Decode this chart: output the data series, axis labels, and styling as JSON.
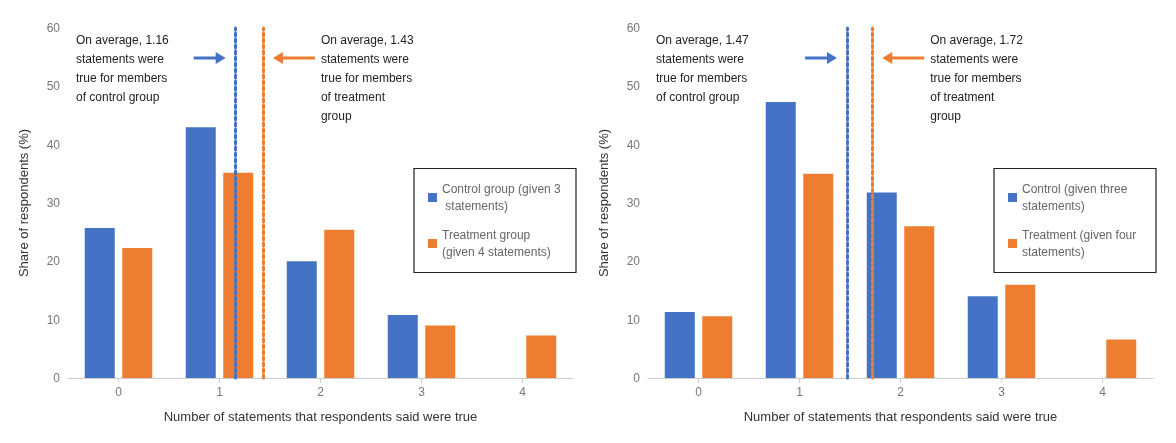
{
  "chart_data": [
    {
      "type": "bar",
      "xlabel": "Number of statements that respondents said were true",
      "ylabel": "Share of respondents (%)",
      "x": [
        0,
        1,
        2,
        3,
        4
      ],
      "xlim": [
        -0.5,
        4.5
      ],
      "xticks": [
        0,
        1,
        2,
        3,
        4
      ],
      "ylim": [
        0,
        60
      ],
      "yticks": [
        0,
        10,
        20,
        30,
        40,
        50,
        60
      ],
      "grid": false,
      "legend": "right",
      "series": [
        {
          "name": "Control group (given 3 statements)",
          "color": "#4472c4",
          "values": [
            25.7,
            43,
            20,
            10.8,
            null
          ]
        },
        {
          "name": "Treatment group (given 4 statements)",
          "color": "#ed7d31",
          "values": [
            22.3,
            35.2,
            25.4,
            9,
            7.3
          ]
        }
      ],
      "ref_lines": [
        {
          "axis": "x",
          "value": 1.16,
          "color": "#4472c4",
          "line_style": "dotted"
        },
        {
          "axis": "x",
          "value": 1.43,
          "color": "#ed7d31",
          "line_style": "dotted"
        }
      ],
      "annotations": [
        "On average, 1.16 statements were true for members of control group",
        "On average, 1.43 statements were true for members of treatment group"
      ]
    },
    {
      "type": "bar",
      "xlabel": "Number of statements that respondents said were true",
      "ylabel": "Share of respondents (%)",
      "x": [
        0,
        1,
        2,
        3,
        4
      ],
      "xlim": [
        -0.5,
        4.5
      ],
      "xticks": [
        0,
        1,
        2,
        3,
        4
      ],
      "ylim": [
        0,
        60
      ],
      "yticks": [
        0,
        10,
        20,
        30,
        40,
        50,
        60
      ],
      "grid": false,
      "legend": "right",
      "series": [
        {
          "name": "Control (given three statements)",
          "color": "#4472c4",
          "values": [
            11.3,
            47.3,
            31.8,
            14,
            null
          ]
        },
        {
          "name": "Treatment (given four statements)",
          "color": "#ed7d31",
          "values": [
            10.6,
            35,
            26,
            16,
            6.6
          ]
        }
      ],
      "ref_lines": [
        {
          "axis": "x",
          "value": 1.47,
          "color": "#4472c4",
          "line_style": "dotted"
        },
        {
          "axis": "x",
          "value": 1.72,
          "color": "#ed7d31",
          "line_style": "dotted"
        }
      ],
      "annotations": [
        "On average, 1.47 statements were true for members of control group",
        "On average, 1.72 statements were true for members of treatment group"
      ]
    }
  ]
}
